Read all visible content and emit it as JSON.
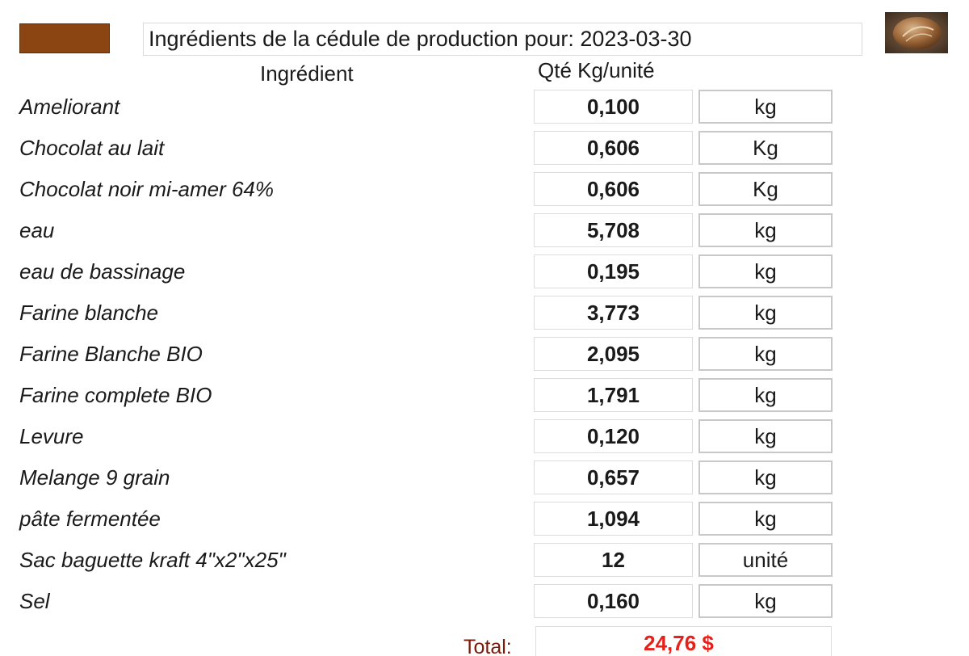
{
  "header": {
    "swatch_color": "#8b4513",
    "title": "Ingrédients de la cédule de production pour: 2023-03-30"
  },
  "columns": {
    "ingredient": "Ingrédient",
    "quantity": "Qté Kg/unité"
  },
  "rows": [
    {
      "name": "Ameliorant",
      "qty": "0,100",
      "unit": "kg"
    },
    {
      "name": "Chocolat au lait",
      "qty": "0,606",
      "unit": "Kg"
    },
    {
      "name": "Chocolat noir mi-amer 64%",
      "qty": "0,606",
      "unit": "Kg"
    },
    {
      "name": "eau",
      "qty": "5,708",
      "unit": "kg"
    },
    {
      "name": "eau de bassinage",
      "qty": "0,195",
      "unit": "kg"
    },
    {
      "name": "Farine blanche",
      "qty": "3,773",
      "unit": "kg"
    },
    {
      "name": "Farine Blanche BIO",
      "qty": "2,095",
      "unit": "kg"
    },
    {
      "name": "Farine complete BIO",
      "qty": "1,791",
      "unit": "kg"
    },
    {
      "name": "Levure",
      "qty": "0,120",
      "unit": "kg"
    },
    {
      "name": "Melange 9 grain",
      "qty": "0,657",
      "unit": "kg"
    },
    {
      "name": "pâte fermentée",
      "qty": "1,094",
      "unit": "kg"
    },
    {
      "name": "Sac baguette kraft 4\"x2\"x25\"",
      "qty": "12",
      "unit": "unité"
    },
    {
      "name": "Sel",
      "qty": "0,160",
      "unit": "kg"
    }
  ],
  "total": {
    "label": "Total:",
    "value": "24,76 $",
    "color": "#e8201a"
  }
}
